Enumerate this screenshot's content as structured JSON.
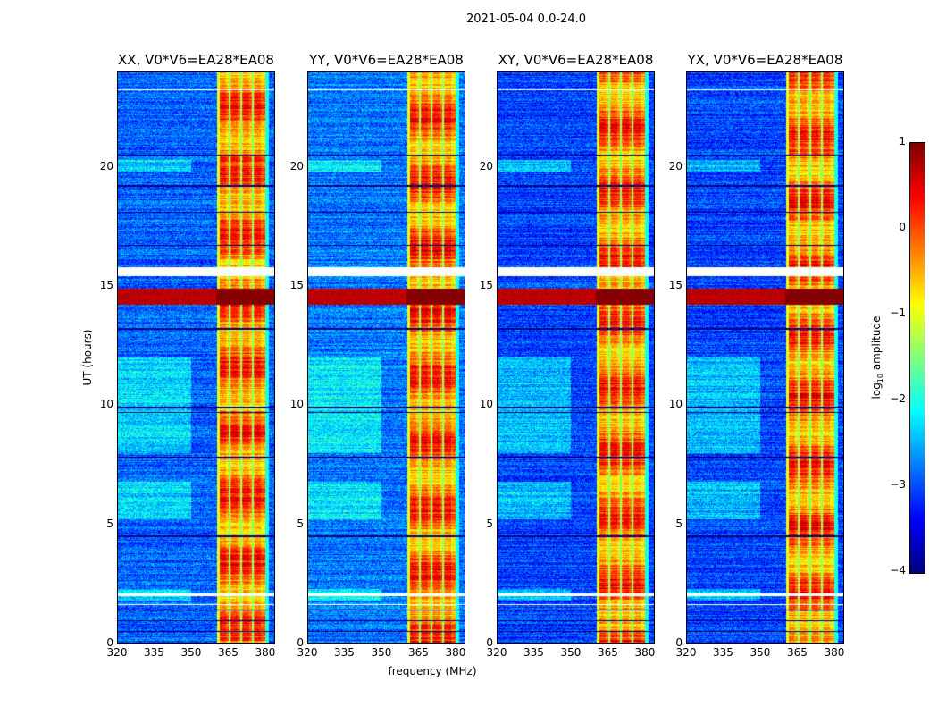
{
  "suptitle": "2021-05-04 0.0-24.0",
  "chart_data": {
    "type": "heatmap",
    "title": "2021-05-04 0.0-24.0",
    "xlabel": "frequency (MHz)",
    "ylabel": "UT (hours)",
    "xlim": [
      320,
      384
    ],
    "ylim": [
      0,
      24
    ],
    "xticks": [
      320,
      335,
      350,
      365,
      380
    ],
    "yticks": [
      0,
      5,
      10,
      15,
      20
    ],
    "panels": [
      {
        "title": "XX, V0*V6=EA28*EA08",
        "level_offset": 0
      },
      {
        "title": "YY, V0*V6=EA28*EA08",
        "level_offset": 0.1
      },
      {
        "title": "XY, V0*V6=EA28*EA08",
        "level_offset": -0.15
      },
      {
        "title": "YX, V0*V6=EA28*EA08",
        "level_offset": -0.15
      }
    ],
    "features": {
      "background_log10": -2.9,
      "rfi_band_mhz": [
        360.5,
        380
      ],
      "rfi_band_log10": -0.4,
      "rfi_gap_freqs_mhz": [
        365.5,
        370.2,
        375
      ],
      "strong_rfi_hours": [
        14.2,
        14.9
      ],
      "strong_rfi_log10": 0.7,
      "flagged_hours": [
        [
          15.4,
          15.8
        ],
        [
          2.0,
          2.1
        ],
        [
          1.6,
          1.65
        ],
        [
          23.2,
          23.25
        ]
      ],
      "dropout_hours": [
        0.5,
        0.95,
        1.4,
        4.5,
        7.8,
        9.7,
        9.9,
        13.2,
        16.7,
        18.1,
        19.2,
        20.5
      ]
    },
    "colorbar": {
      "label": "log10 amplitude",
      "label_main": "log",
      "label_sub": "10",
      "label_rest": " amplitude",
      "range": [
        -4,
        1
      ],
      "ticks": [
        "1",
        "0",
        "−1",
        "−2",
        "−3",
        "−4"
      ],
      "colormap": "jet"
    }
  }
}
